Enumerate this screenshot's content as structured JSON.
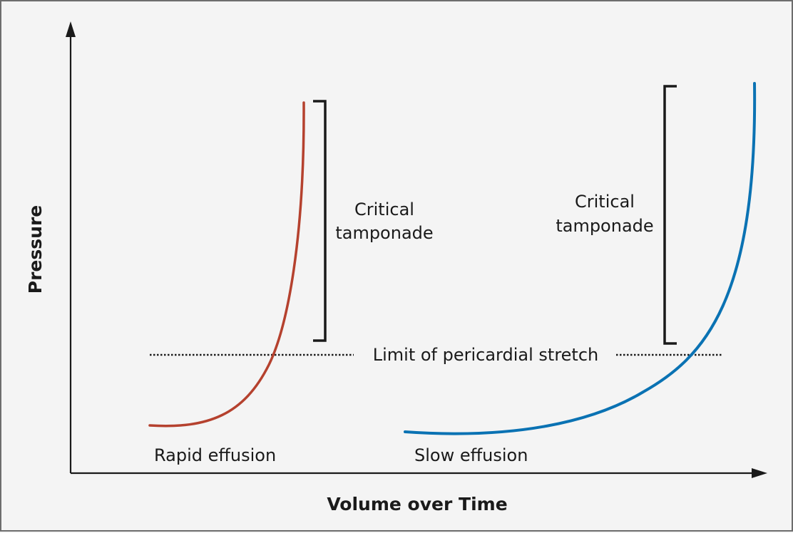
{
  "axes": {
    "x_label": "Volume over Time",
    "y_label": "Pressure"
  },
  "curves": {
    "rapid": {
      "label": "Rapid effusion",
      "color": "#b5412e"
    },
    "slow": {
      "label": "Slow effusion",
      "color": "#0a72b3"
    }
  },
  "threshold": {
    "label": "Limit of pericardial stretch"
  },
  "brackets": {
    "left": {
      "line1": "Critical",
      "line2": "tamponade"
    },
    "right": {
      "line1": "Critical",
      "line2": "tamponade"
    }
  }
}
